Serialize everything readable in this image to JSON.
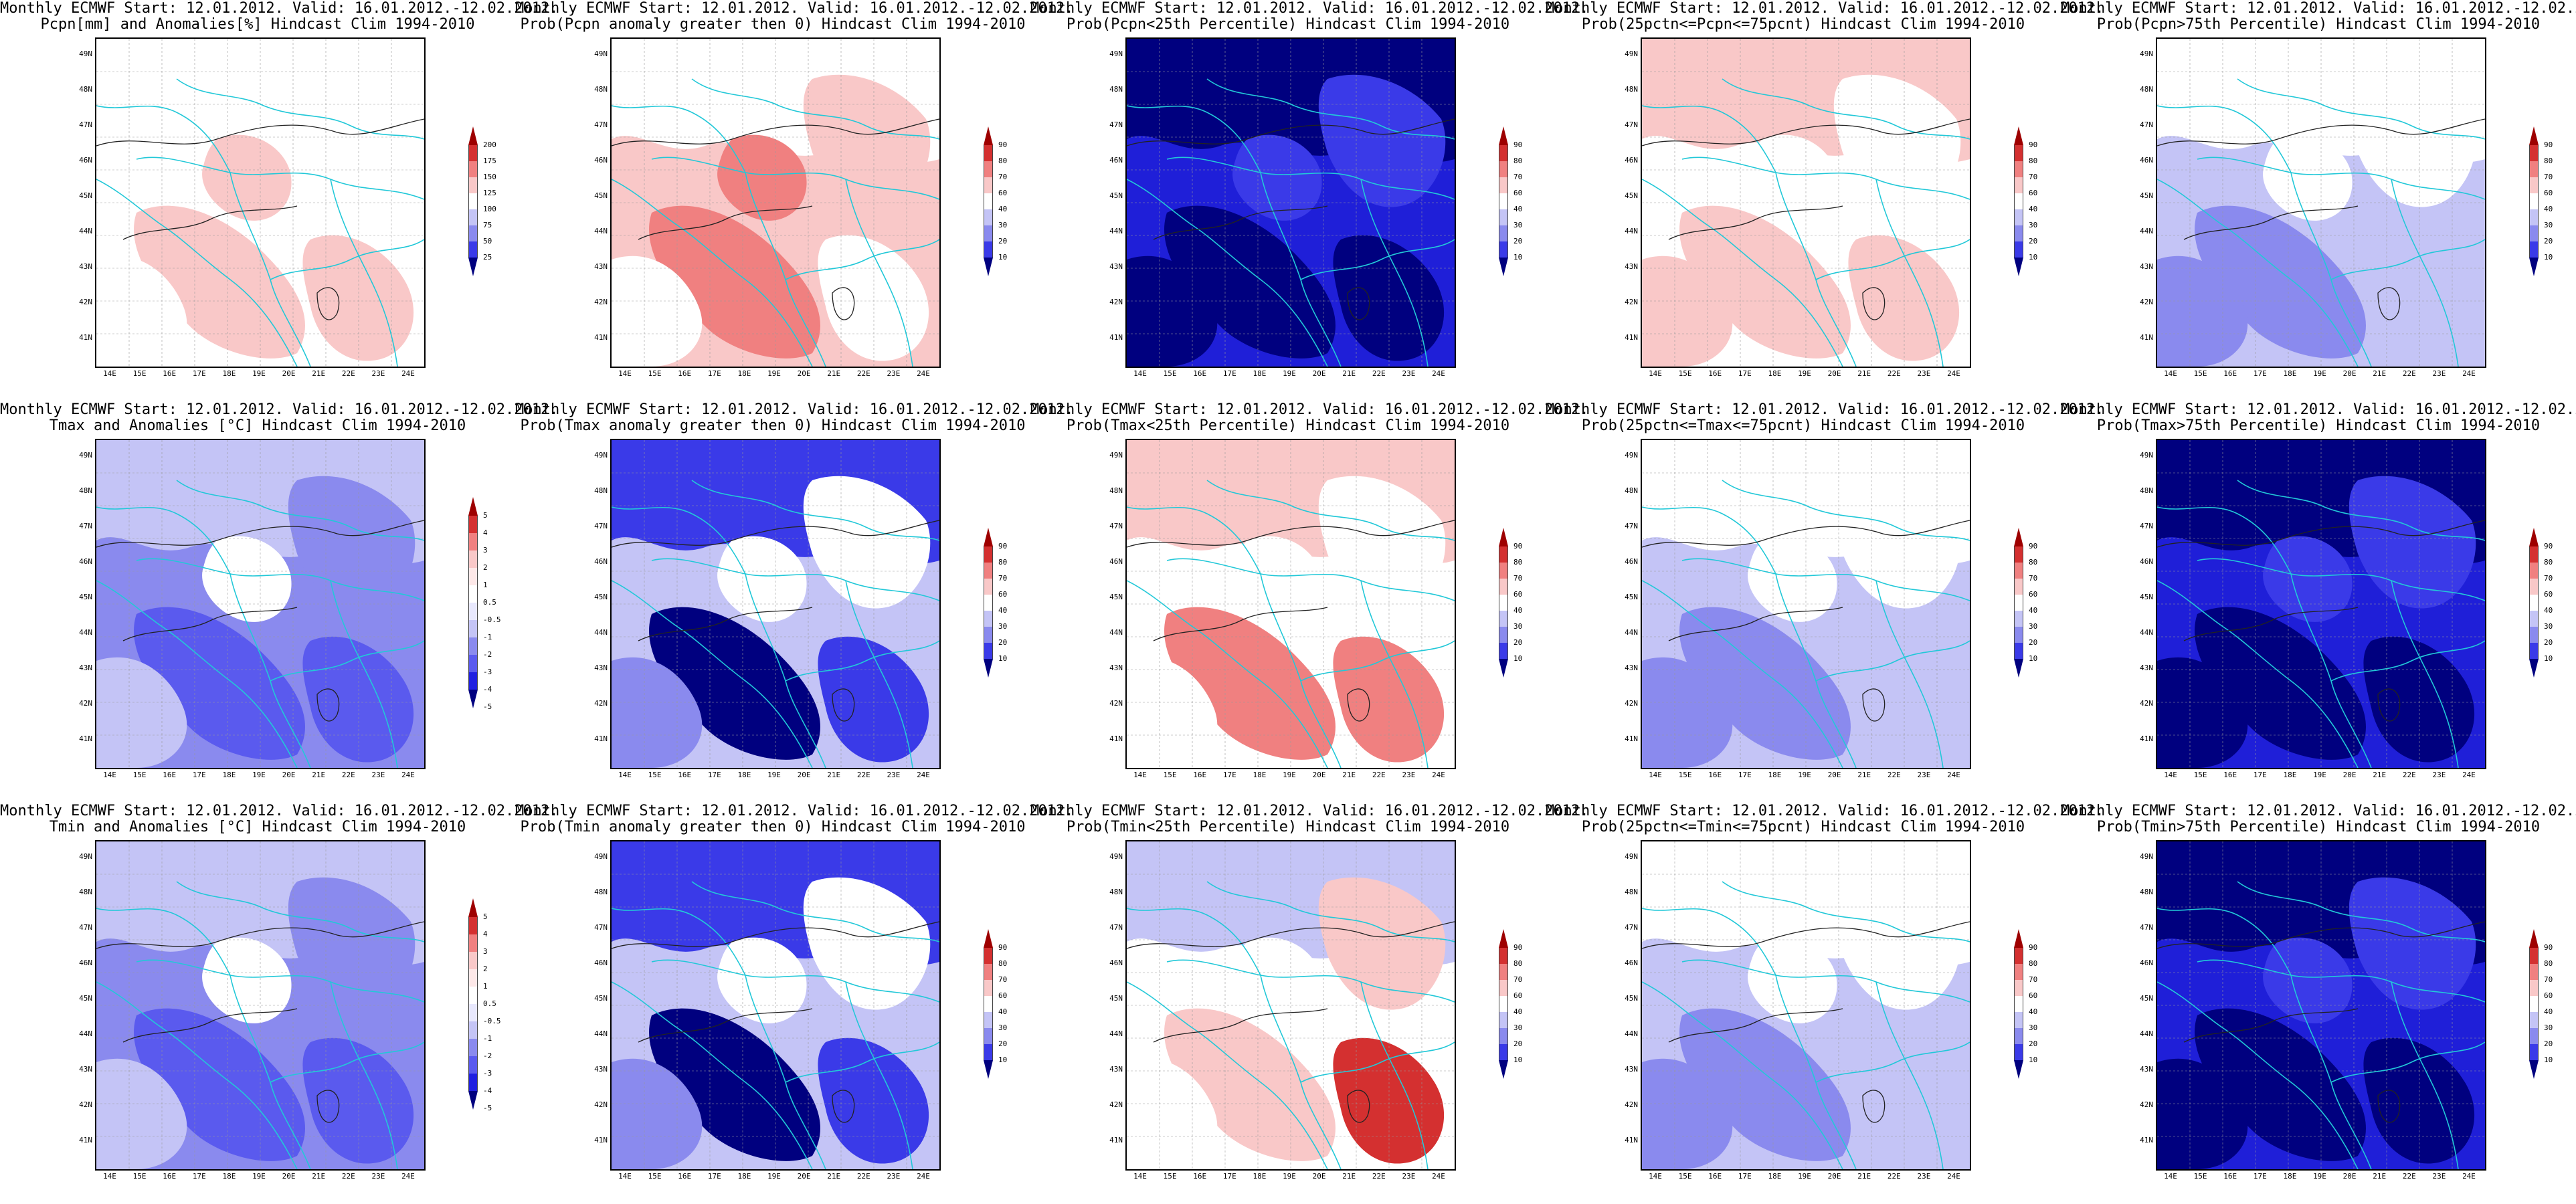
{
  "header": "Monthly ECMWF Start: 12.01.2012. Valid: 16.01.2012.-12.02.2012.",
  "lat_labels": [
    "49N",
    "48N",
    "47N",
    "46N",
    "45N",
    "44N",
    "43N",
    "42N",
    "41N"
  ],
  "lon_labels": [
    "14E",
    "15E",
    "16E",
    "17E",
    "18E",
    "19E",
    "20E",
    "21E",
    "22E",
    "23E",
    "24E"
  ],
  "scales": {
    "pcpn": [
      "200",
      "175",
      "150",
      "125",
      "100",
      "75",
      "50",
      "25"
    ],
    "temp": [
      "5",
      "4",
      "3",
      "2",
      "1",
      "0.5",
      "-0.5",
      "-1",
      "-2",
      "-3",
      "-4",
      "-5"
    ],
    "prob": [
      "90",
      "80",
      "70",
      "60",
      "40",
      "30",
      "20",
      "10"
    ]
  },
  "panels": [
    {
      "title": "Pcpn[mm] and Anomalies[%] Hindcast Clim 1994-2010",
      "scale": "pcpn",
      "theme": "pcpn_anom"
    },
    {
      "title": "Prob(Pcpn anomaly greater then 0) Hindcast Clim 1994-2010",
      "scale": "prob",
      "theme": "pinkish"
    },
    {
      "title": "Prob(Pcpn<25th Percentile) Hindcast Clim 1994-2010",
      "scale": "prob",
      "theme": "deepblue"
    },
    {
      "title": "Prob(25pctn<=Pcpn<=75pcnt) Hindcast Clim 1994-2010",
      "scale": "prob",
      "theme": "pinkish_light"
    },
    {
      "title": "Prob(Pcpn>75th Percentile) Hindcast Clim 1994-2010",
      "scale": "prob",
      "theme": "lightblue"
    },
    {
      "title": "Tmax and Anomalies [°C] Hindcast Clim 1994-2010",
      "scale": "temp",
      "theme": "blue_mid"
    },
    {
      "title": "Prob(Tmax anomaly greater then 0) Hindcast Clim 1994-2010",
      "scale": "prob",
      "theme": "blue_mix"
    },
    {
      "title": "Prob(Tmax<25th Percentile) Hindcast Clim 1994-2010",
      "scale": "prob",
      "theme": "red_south"
    },
    {
      "title": "Prob(25pctn<=Tmax<=75pcnt) Hindcast Clim 1994-2010",
      "scale": "prob",
      "theme": "lightblue"
    },
    {
      "title": "Prob(Tmax>75th Percentile) Hindcast Clim 1994-2010",
      "scale": "prob",
      "theme": "deepblue"
    },
    {
      "title": "Tmin and Anomalies [°C] Hindcast Clim 1994-2010",
      "scale": "temp",
      "theme": "blue_mid"
    },
    {
      "title": "Prob(Tmin anomaly greater then 0) Hindcast Clim 1994-2010",
      "scale": "prob",
      "theme": "blue_mix"
    },
    {
      "title": "Prob(Tmin<25th Percentile) Hindcast Clim 1994-2010",
      "scale": "prob",
      "theme": "mixed_red"
    },
    {
      "title": "Prob(25pctn<=Tmin<=75pcnt) Hindcast Clim 1994-2010",
      "scale": "prob",
      "theme": "lightblue"
    },
    {
      "title": "Prob(Tmin>75th Percentile) Hindcast Clim 1994-2010",
      "scale": "prob",
      "theme": "deepblue"
    }
  ],
  "palette_colors": {
    "pcpn": [
      "#9e0000",
      "#d43030",
      "#f08080",
      "#f9c8c8",
      "#ffffff",
      "#c4c4f6",
      "#8a8aee",
      "#3a3ae8",
      "#00007f"
    ],
    "temp": [
      "#9e0000",
      "#d43030",
      "#f08080",
      "#f9c8c8",
      "#fde8e8",
      "#ffffff",
      "#e8e8fd",
      "#c4c4f6",
      "#8a8aee",
      "#5a5aee",
      "#2020e0",
      "#00007f"
    ],
    "prob": [
      "#9e0000",
      "#d43030",
      "#f08080",
      "#f9c8c8",
      "#ffffff",
      "#c4c4f6",
      "#8a8aee",
      "#3a3ae8",
      "#00007f"
    ]
  }
}
